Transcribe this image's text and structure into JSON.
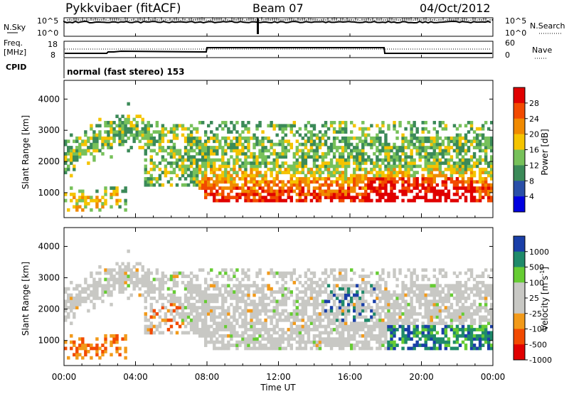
{
  "header": {
    "station": "Pykkvibaer (fitACF)",
    "beam": "Beam 07",
    "date": "04/Oct/2012"
  },
  "summary_panel": {
    "nsky_label": "N.Sky",
    "nsky_tick_top": "10^5",
    "nsky_tick_bottom": "10^0",
    "nsearch_label": "N.Search",
    "nsearch_tick_top": "10^5",
    "nsearch_tick_bottom": "10^0",
    "freq_label_1": "Freq.",
    "freq_label_2": "[MHz]",
    "freq_tick_top": "18",
    "freq_tick_bottom": "8",
    "nave_label": "Nave",
    "nave_tick_top": "60",
    "nave_tick_bottom": "0",
    "cpid_label": "CPID",
    "cpid_text": "normal (fast stereo) 153"
  },
  "x_axis": {
    "label": "Time UT",
    "ticks": [
      "00:00",
      "04:00",
      "08:00",
      "12:00",
      "16:00",
      "20:00",
      "00:00"
    ]
  },
  "colors": {
    "power": [
      "#0000e0",
      "#2a4fa8",
      "#3b8a58",
      "#77c15a",
      "#f5c400",
      "#f08a00",
      "#f24a00",
      "#e00000"
    ],
    "velocity": [
      "#e00000",
      "#f24a00",
      "#f29a1a",
      "#c8c8c4",
      "#c8c8c4",
      "#66cc33",
      "#1f8a6a",
      "#1a3fa8"
    ]
  },
  "chart_data": [
    {
      "type": "heatmap",
      "name": "power",
      "ylabel": "Slant Range [km]",
      "yticks": [
        1000,
        2000,
        3000,
        4000
      ],
      "ylim": [
        200,
        4600
      ],
      "xlim_hours": [
        0,
        24
      ],
      "colorbar_label": "Power [dB]",
      "colorbar_ticks": [
        "4",
        "8",
        "12",
        "16",
        "20",
        "24",
        "28"
      ],
      "colorbar_range": [
        0,
        32
      ]
    },
    {
      "type": "heatmap",
      "name": "velocity",
      "ylabel": "Slant Range [km]",
      "yticks": [
        1000,
        2000,
        3000,
        4000
      ],
      "ylim": [
        200,
        4600
      ],
      "xlim_hours": [
        0,
        24
      ],
      "colorbar_label": "Velocity [m s",
      "colorbar_label_sup": "-1",
      "colorbar_label_end": "]",
      "colorbar_ticks": [
        "1000",
        "500",
        "100",
        "25",
        "-25",
        "-100",
        "-500",
        "-1000"
      ]
    }
  ]
}
